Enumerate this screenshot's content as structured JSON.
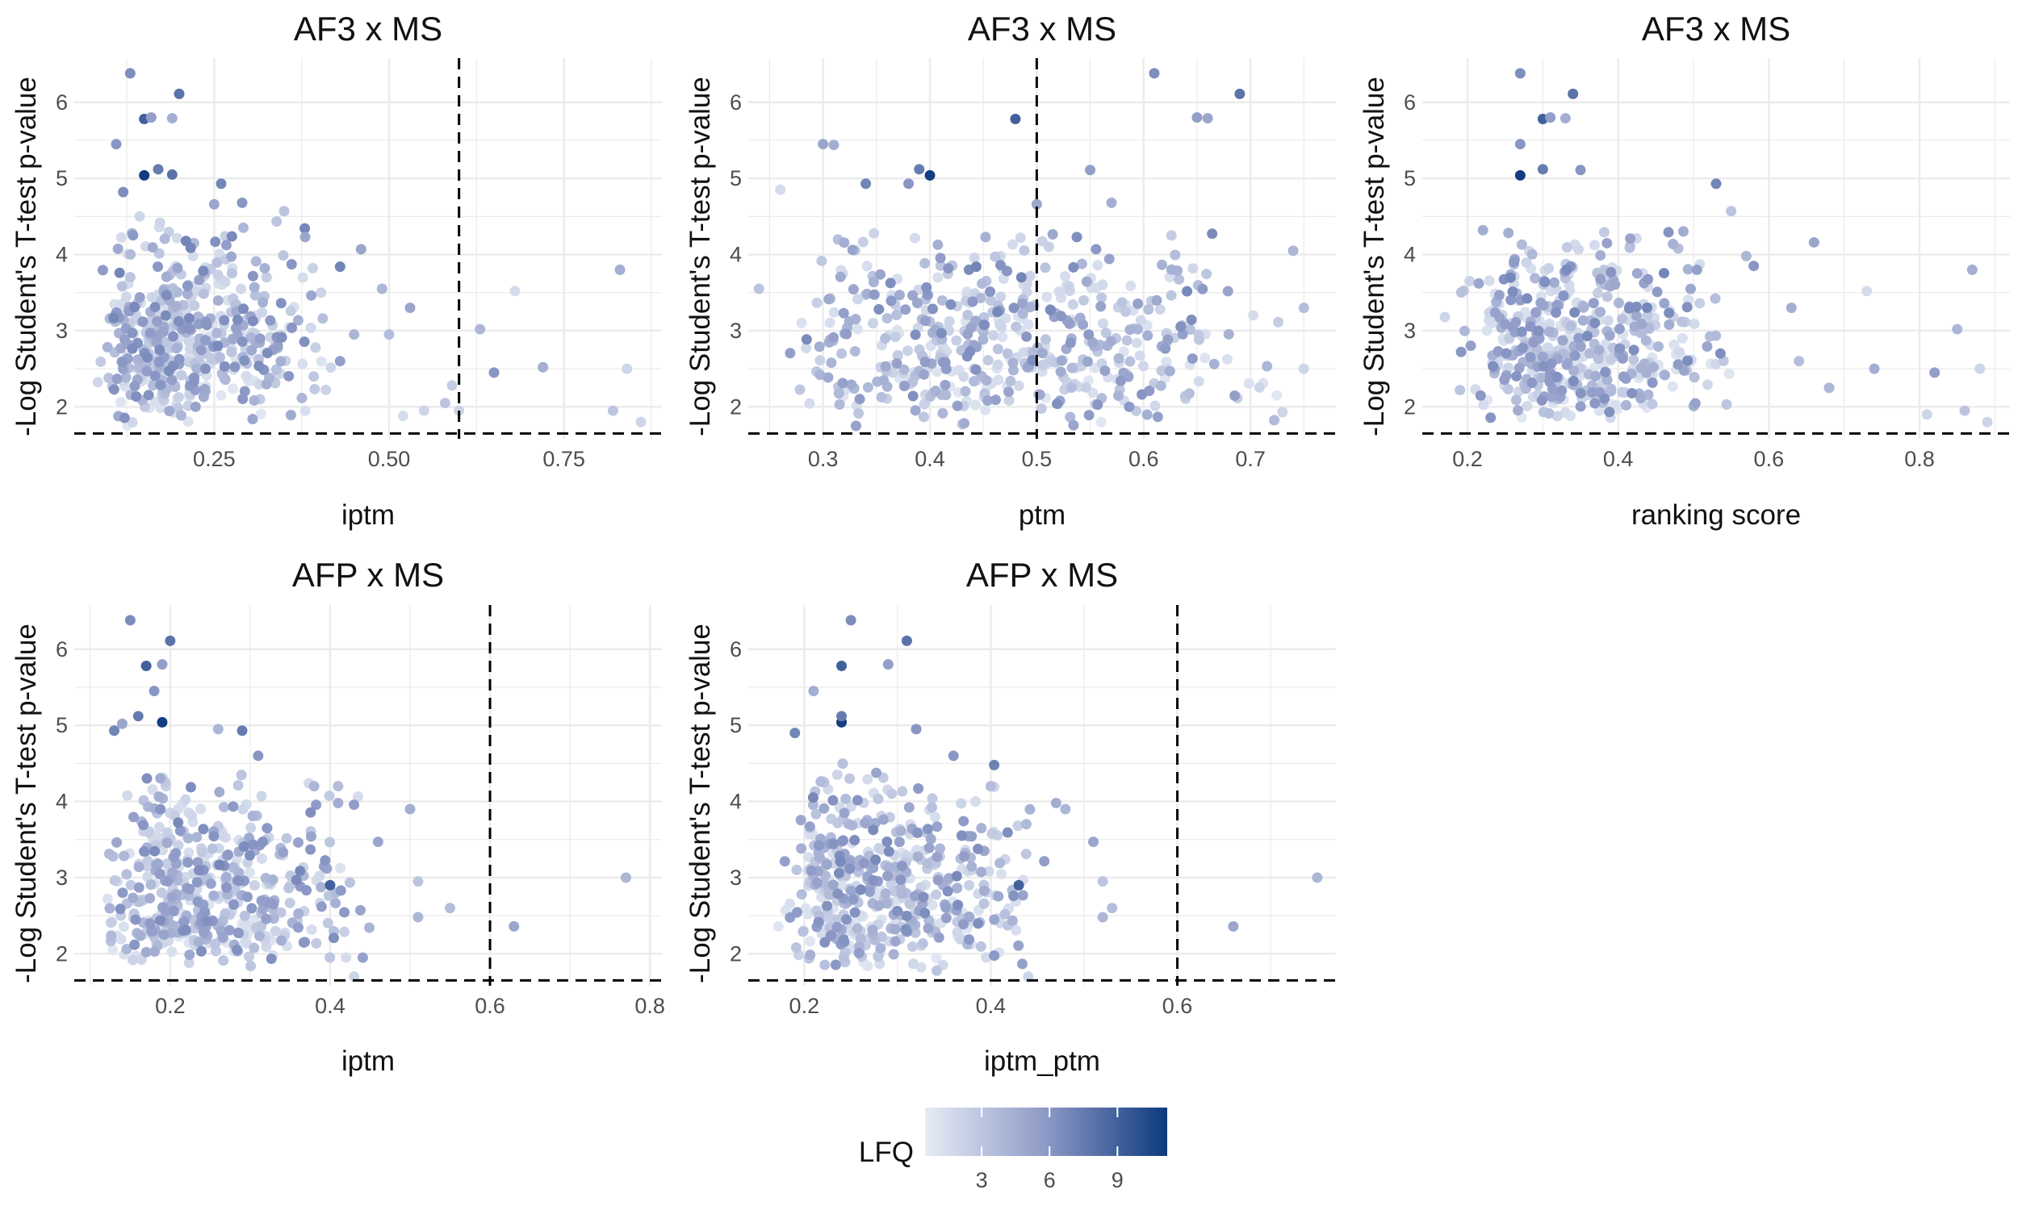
{
  "legend": {
    "title": "LFQ",
    "ticks": [
      3,
      6,
      9
    ],
    "range": [
      0.5,
      11.2
    ],
    "color_low": "#e6ecf5",
    "color_high": "#0d3a7e"
  },
  "colors": {
    "grid": "#ebebeb",
    "reference_line": "#000000",
    "text": "#111111",
    "tick_text": "#4d4d4d"
  },
  "chart_data": [
    {
      "type": "scatter",
      "title": "AF3 x MS",
      "xlabel": "iptm",
      "ylabel": "-Log Student's T-test p-value",
      "xlim": [
        0.05,
        0.89
      ],
      "ylim": [
        1.58,
        6.58
      ],
      "x_ticks": [
        0.25,
        0.5,
        0.75
      ],
      "x_tick_labels": [
        "0.25",
        "0.50",
        "0.75"
      ],
      "y_ticks": [
        2,
        3,
        4,
        5,
        6
      ],
      "grid": true,
      "vline": 0.6,
      "hline": 1.65,
      "highlight_points": [
        {
          "x": 0.13,
          "y": 6.38,
          "lfq": 6.5
        },
        {
          "x": 0.2,
          "y": 6.11,
          "lfq": 8.0
        },
        {
          "x": 0.15,
          "y": 5.78,
          "lfq": 9.0
        },
        {
          "x": 0.16,
          "y": 5.8,
          "lfq": 5.5
        },
        {
          "x": 0.19,
          "y": 5.79,
          "lfq": 4.5
        },
        {
          "x": 0.11,
          "y": 5.45,
          "lfq": 6.0
        },
        {
          "x": 0.15,
          "y": 5.04,
          "lfq": 11.0
        },
        {
          "x": 0.17,
          "y": 5.12,
          "lfq": 7.5
        },
        {
          "x": 0.19,
          "y": 5.05,
          "lfq": 8.0
        },
        {
          "x": 0.12,
          "y": 4.82,
          "lfq": 6.5
        },
        {
          "x": 0.26,
          "y": 4.93,
          "lfq": 7.0
        },
        {
          "x": 0.25,
          "y": 4.66,
          "lfq": 5.0
        },
        {
          "x": 0.29,
          "y": 4.68,
          "lfq": 6.0
        },
        {
          "x": 0.35,
          "y": 4.57,
          "lfq": 3.0
        },
        {
          "x": 0.38,
          "y": 4.23,
          "lfq": 5.0
        },
        {
          "x": 0.43,
          "y": 3.84,
          "lfq": 7.0
        },
        {
          "x": 0.46,
          "y": 4.07,
          "lfq": 5.0
        },
        {
          "x": 0.49,
          "y": 3.55,
          "lfq": 4.0
        },
        {
          "x": 0.53,
          "y": 3.3,
          "lfq": 5.0
        },
        {
          "x": 0.5,
          "y": 2.95,
          "lfq": 3.5
        },
        {
          "x": 0.45,
          "y": 2.95,
          "lfq": 4.0
        },
        {
          "x": 0.43,
          "y": 2.6,
          "lfq": 5.5
        },
        {
          "x": 0.52,
          "y": 1.88,
          "lfq": 1.5
        },
        {
          "x": 0.55,
          "y": 1.95,
          "lfq": 2.0
        },
        {
          "x": 0.58,
          "y": 2.05,
          "lfq": 3.0
        },
        {
          "x": 0.59,
          "y": 2.28,
          "lfq": 2.5
        },
        {
          "x": 0.6,
          "y": 1.95,
          "lfq": 2.0
        },
        {
          "x": 0.63,
          "y": 3.02,
          "lfq": 4.0
        },
        {
          "x": 0.65,
          "y": 2.45,
          "lfq": 6.0
        },
        {
          "x": 0.68,
          "y": 3.52,
          "lfq": 1.5
        },
        {
          "x": 0.72,
          "y": 2.52,
          "lfq": 4.5
        },
        {
          "x": 0.83,
          "y": 3.8,
          "lfq": 4.5
        },
        {
          "x": 0.82,
          "y": 1.95,
          "lfq": 3.0
        },
        {
          "x": 0.84,
          "y": 2.5,
          "lfq": 2.0
        },
        {
          "x": 0.86,
          "y": 1.8,
          "lfq": 2.0
        }
      ],
      "cloud": {
        "count": 480,
        "x_min": 0.08,
        "x_max": 0.42,
        "x_mode": 0.17,
        "y_min": 1.72,
        "y_max": 4.6,
        "y_mode": 2.4,
        "seed": 11
      }
    },
    {
      "type": "scatter",
      "title": "AF3 x MS",
      "xlabel": "ptm",
      "ylabel": "-Log Student's T-test p-value",
      "xlim": [
        0.23,
        0.78
      ],
      "ylim": [
        1.58,
        6.58
      ],
      "x_ticks": [
        0.3,
        0.4,
        0.5,
        0.6,
        0.7
      ],
      "x_tick_labels": [
        "0.3",
        "0.4",
        "0.5",
        "0.6",
        "0.7"
      ],
      "y_ticks": [
        2,
        3,
        4,
        5,
        6
      ],
      "grid": true,
      "vline": 0.5,
      "hline": 1.65,
      "highlight_points": [
        {
          "x": 0.61,
          "y": 6.38,
          "lfq": 6.5
        },
        {
          "x": 0.69,
          "y": 6.11,
          "lfq": 8.0
        },
        {
          "x": 0.48,
          "y": 5.78,
          "lfq": 9.0
        },
        {
          "x": 0.65,
          "y": 5.8,
          "lfq": 5.5
        },
        {
          "x": 0.66,
          "y": 5.79,
          "lfq": 5.0
        },
        {
          "x": 0.3,
          "y": 5.45,
          "lfq": 5.0
        },
        {
          "x": 0.31,
          "y": 5.44,
          "lfq": 4.5
        },
        {
          "x": 0.4,
          "y": 5.04,
          "lfq": 11.0
        },
        {
          "x": 0.39,
          "y": 5.12,
          "lfq": 7.5
        },
        {
          "x": 0.55,
          "y": 5.11,
          "lfq": 5.5
        },
        {
          "x": 0.34,
          "y": 4.93,
          "lfq": 7.0
        },
        {
          "x": 0.38,
          "y": 4.93,
          "lfq": 6.0
        },
        {
          "x": 0.26,
          "y": 4.85,
          "lfq": 1.5
        },
        {
          "x": 0.5,
          "y": 4.66,
          "lfq": 5.0
        },
        {
          "x": 0.57,
          "y": 4.68,
          "lfq": 4.5
        },
        {
          "x": 0.75,
          "y": 3.3,
          "lfq": 3.5
        },
        {
          "x": 0.75,
          "y": 2.5,
          "lfq": 2.0
        },
        {
          "x": 0.74,
          "y": 4.05,
          "lfq": 4.0
        },
        {
          "x": 0.73,
          "y": 1.93,
          "lfq": 2.0
        },
        {
          "x": 0.24,
          "y": 3.55,
          "lfq": 3.0
        }
      ],
      "cloud": {
        "count": 500,
        "x_min": 0.25,
        "x_max": 0.74,
        "x_mode": 0.42,
        "y_min": 1.72,
        "y_max": 4.5,
        "y_mode": 2.6,
        "seed": 23
      }
    },
    {
      "type": "scatter",
      "title": "AF3 x MS",
      "xlabel": "ranking score",
      "ylabel": "-Log Student's T-test p-value",
      "xlim": [
        0.14,
        0.92
      ],
      "ylim": [
        1.58,
        6.58
      ],
      "x_ticks": [
        0.2,
        0.4,
        0.6,
        0.8
      ],
      "x_tick_labels": [
        "0.2",
        "0.4",
        "0.6",
        "0.8"
      ],
      "y_ticks": [
        2,
        3,
        4,
        5,
        6
      ],
      "grid": true,
      "hline": 1.65,
      "highlight_points": [
        {
          "x": 0.27,
          "y": 6.38,
          "lfq": 6.5
        },
        {
          "x": 0.34,
          "y": 6.11,
          "lfq": 8.0
        },
        {
          "x": 0.3,
          "y": 5.78,
          "lfq": 9.0
        },
        {
          "x": 0.31,
          "y": 5.8,
          "lfq": 5.5
        },
        {
          "x": 0.33,
          "y": 5.79,
          "lfq": 4.5
        },
        {
          "x": 0.27,
          "y": 5.45,
          "lfq": 6.0
        },
        {
          "x": 0.27,
          "y": 5.04,
          "lfq": 11.0
        },
        {
          "x": 0.3,
          "y": 5.12,
          "lfq": 7.5
        },
        {
          "x": 0.35,
          "y": 5.11,
          "lfq": 6.0
        },
        {
          "x": 0.53,
          "y": 4.93,
          "lfq": 7.0
        },
        {
          "x": 0.55,
          "y": 4.57,
          "lfq": 3.0
        },
        {
          "x": 0.57,
          "y": 3.98,
          "lfq": 4.0
        },
        {
          "x": 0.58,
          "y": 3.85,
          "lfq": 6.0
        },
        {
          "x": 0.66,
          "y": 4.16,
          "lfq": 5.0
        },
        {
          "x": 0.63,
          "y": 3.3,
          "lfq": 4.5
        },
        {
          "x": 0.64,
          "y": 2.6,
          "lfq": 3.5
        },
        {
          "x": 0.68,
          "y": 2.25,
          "lfq": 4.0
        },
        {
          "x": 0.73,
          "y": 3.52,
          "lfq": 1.5
        },
        {
          "x": 0.74,
          "y": 2.5,
          "lfq": 4.5
        },
        {
          "x": 0.81,
          "y": 1.9,
          "lfq": 2.0
        },
        {
          "x": 0.82,
          "y": 2.45,
          "lfq": 5.5
        },
        {
          "x": 0.85,
          "y": 3.02,
          "lfq": 4.0
        },
        {
          "x": 0.86,
          "y": 1.95,
          "lfq": 3.0
        },
        {
          "x": 0.87,
          "y": 3.8,
          "lfq": 4.5
        },
        {
          "x": 0.88,
          "y": 2.5,
          "lfq": 2.0
        },
        {
          "x": 0.89,
          "y": 1.8,
          "lfq": 2.0
        },
        {
          "x": 0.17,
          "y": 3.18,
          "lfq": 2.0
        },
        {
          "x": 0.19,
          "y": 2.22,
          "lfq": 3.0
        }
      ],
      "cloud": {
        "count": 480,
        "x_min": 0.18,
        "x_max": 0.56,
        "x_mode": 0.3,
        "y_min": 1.72,
        "y_max": 4.5,
        "y_mode": 2.5,
        "seed": 37
      }
    },
    {
      "type": "scatter",
      "title": "AFP x MS",
      "xlabel": "iptm",
      "ylabel": "-Log Student's T-test p-value",
      "xlim": [
        0.08,
        0.815
      ],
      "ylim": [
        1.58,
        6.58
      ],
      "x_ticks": [
        0.2,
        0.4,
        0.6,
        0.8
      ],
      "x_tick_labels": [
        "0.2",
        "0.4",
        "0.6",
        "0.8"
      ],
      "y_ticks": [
        2,
        3,
        4,
        5,
        6
      ],
      "grid": true,
      "vline": 0.6,
      "hline": 1.65,
      "highlight_points": [
        {
          "x": 0.15,
          "y": 6.38,
          "lfq": 6.5
        },
        {
          "x": 0.2,
          "y": 6.11,
          "lfq": 8.0
        },
        {
          "x": 0.17,
          "y": 5.78,
          "lfq": 9.0
        },
        {
          "x": 0.19,
          "y": 5.8,
          "lfq": 5.5
        },
        {
          "x": 0.18,
          "y": 5.45,
          "lfq": 6.0
        },
        {
          "x": 0.19,
          "y": 5.04,
          "lfq": 11.0
        },
        {
          "x": 0.16,
          "y": 5.12,
          "lfq": 7.5
        },
        {
          "x": 0.13,
          "y": 4.93,
          "lfq": 7.0
        },
        {
          "x": 0.14,
          "y": 5.02,
          "lfq": 5.0
        },
        {
          "x": 0.29,
          "y": 4.93,
          "lfq": 7.5
        },
        {
          "x": 0.31,
          "y": 4.6,
          "lfq": 6.0
        },
        {
          "x": 0.26,
          "y": 4.95,
          "lfq": 4.0
        },
        {
          "x": 0.38,
          "y": 4.2,
          "lfq": 4.0
        },
        {
          "x": 0.41,
          "y": 4.2,
          "lfq": 3.5
        },
        {
          "x": 0.41,
          "y": 3.98,
          "lfq": 4.5
        },
        {
          "x": 0.4,
          "y": 2.9,
          "lfq": 9.0
        },
        {
          "x": 0.46,
          "y": 3.47,
          "lfq": 5.0
        },
        {
          "x": 0.5,
          "y": 3.9,
          "lfq": 4.5
        },
        {
          "x": 0.51,
          "y": 2.95,
          "lfq": 3.0
        },
        {
          "x": 0.51,
          "y": 2.48,
          "lfq": 4.0
        },
        {
          "x": 0.55,
          "y": 2.6,
          "lfq": 3.5
        },
        {
          "x": 0.63,
          "y": 2.36,
          "lfq": 5.0
        },
        {
          "x": 0.77,
          "y": 3.0,
          "lfq": 4.0
        },
        {
          "x": 0.42,
          "y": 1.95,
          "lfq": 1.5
        },
        {
          "x": 0.43,
          "y": 1.7,
          "lfq": 2.0
        }
      ],
      "cloud": {
        "count": 480,
        "x_min": 0.11,
        "x_max": 0.45,
        "x_mode": 0.18,
        "y_min": 1.72,
        "y_max": 4.6,
        "y_mode": 2.4,
        "seed": 53
      }
    },
    {
      "type": "scatter",
      "title": "AFP x MS",
      "xlabel": "iptm_ptm",
      "ylabel": "-Log Student's T-test p-value",
      "xlim": [
        0.14,
        0.77
      ],
      "ylim": [
        1.58,
        6.58
      ],
      "x_ticks": [
        0.2,
        0.4,
        0.6
      ],
      "x_tick_labels": [
        "0.2",
        "0.4",
        "0.6"
      ],
      "y_ticks": [
        2,
        3,
        4,
        5,
        6
      ],
      "grid": true,
      "vline": 0.6,
      "hline": 1.65,
      "highlight_points": [
        {
          "x": 0.25,
          "y": 6.38,
          "lfq": 6.5
        },
        {
          "x": 0.31,
          "y": 6.11,
          "lfq": 8.0
        },
        {
          "x": 0.24,
          "y": 5.78,
          "lfq": 9.0
        },
        {
          "x": 0.29,
          "y": 5.8,
          "lfq": 5.5
        },
        {
          "x": 0.21,
          "y": 5.45,
          "lfq": 4.5
        },
        {
          "x": 0.24,
          "y": 5.04,
          "lfq": 11.0
        },
        {
          "x": 0.24,
          "y": 5.12,
          "lfq": 7.5
        },
        {
          "x": 0.19,
          "y": 4.9,
          "lfq": 7.0
        },
        {
          "x": 0.32,
          "y": 4.95,
          "lfq": 6.0
        },
        {
          "x": 0.36,
          "y": 4.6,
          "lfq": 6.0
        },
        {
          "x": 0.4,
          "y": 4.2,
          "lfq": 3.5
        },
        {
          "x": 0.47,
          "y": 3.98,
          "lfq": 4.5
        },
        {
          "x": 0.48,
          "y": 3.9,
          "lfq": 4.0
        },
        {
          "x": 0.43,
          "y": 2.9,
          "lfq": 9.0
        },
        {
          "x": 0.51,
          "y": 3.47,
          "lfq": 5.0
        },
        {
          "x": 0.52,
          "y": 2.95,
          "lfq": 3.0
        },
        {
          "x": 0.52,
          "y": 2.48,
          "lfq": 4.0
        },
        {
          "x": 0.53,
          "y": 2.6,
          "lfq": 3.5
        },
        {
          "x": 0.66,
          "y": 2.36,
          "lfq": 5.0
        },
        {
          "x": 0.75,
          "y": 3.0,
          "lfq": 4.0
        },
        {
          "x": 0.44,
          "y": 1.7,
          "lfq": 2.0
        }
      ],
      "cloud": {
        "count": 480,
        "x_min": 0.17,
        "x_max": 0.47,
        "x_mode": 0.24,
        "y_min": 1.72,
        "y_max": 4.6,
        "y_mode": 2.4,
        "seed": 71
      }
    }
  ]
}
